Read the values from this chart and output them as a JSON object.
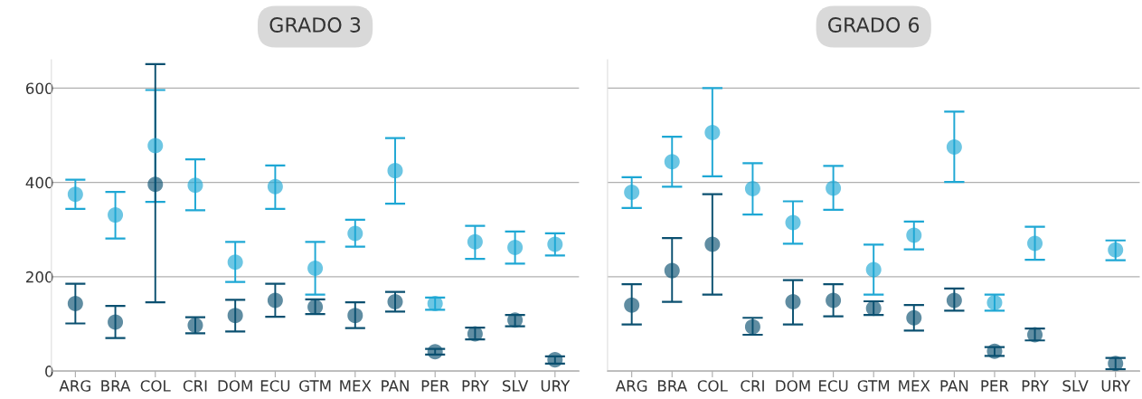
{
  "chart_data": [
    {
      "type": "scatter",
      "title": "GRADO 3",
      "categories": [
        "ARG",
        "BRA",
        "COL",
        "CRI",
        "DOM",
        "ECU",
        "GTM",
        "MEX",
        "PAN",
        "PER",
        "PRY",
        "SLV",
        "URY"
      ],
      "ylim": [
        0,
        660
      ],
      "yticks": [
        0,
        200,
        400,
        600
      ],
      "grid": "y",
      "marker": "circle",
      "series": [
        {
          "color": "#1ea7d4",
          "values": [
            375,
            331,
            478,
            394,
            231,
            391,
            218,
            292,
            425,
            143,
            274,
            262,
            269
          ],
          "errors": [
            [
              344,
              406
            ],
            [
              281,
              380
            ],
            [
              359,
              596
            ],
            [
              341,
              449
            ],
            [
              189,
              274
            ],
            [
              344,
              436
            ],
            [
              162,
              274
            ],
            [
              264,
              321
            ],
            [
              355,
              494
            ],
            [
              130,
              156
            ],
            [
              238,
              308
            ],
            [
              228,
              296
            ],
            [
              245,
              292
            ]
          ]
        },
        {
          "color": "#0b5070",
          "values": [
            143,
            104,
            396,
            97,
            118,
            150,
            136,
            118,
            147,
            41,
            79,
            108,
            24
          ],
          "errors": [
            [
              101,
              185
            ],
            [
              70,
              138
            ],
            [
              146,
              651
            ],
            [
              80,
              114
            ],
            [
              84,
              151
            ],
            [
              115,
              185
            ],
            [
              121,
              152
            ],
            [
              91,
              146
            ],
            [
              126,
              168
            ],
            [
              35,
              47
            ],
            [
              67,
              92
            ],
            [
              95,
              119
            ],
            [
              16,
              31
            ]
          ]
        }
      ]
    },
    {
      "type": "scatter",
      "title": "GRADO 6",
      "categories": [
        "ARG",
        "BRA",
        "COL",
        "CRI",
        "DOM",
        "ECU",
        "GTM",
        "MEX",
        "PAN",
        "PER",
        "PRY",
        "SLV",
        "URY"
      ],
      "ylim": [
        0,
        660
      ],
      "yticks": [
        0,
        200,
        400,
        600
      ],
      "grid": "y",
      "marker": "circle",
      "tick_labels": "x",
      "series": [
        {
          "color": "#1ea7d4",
          "values": [
            379,
            444,
            506,
            387,
            315,
            388,
            215,
            288,
            475,
            145,
            271,
            null,
            257
          ],
          "errors": [
            [
              346,
              411
            ],
            [
              391,
              497
            ],
            [
              413,
              600
            ],
            [
              332,
              441
            ],
            [
              270,
              360
            ],
            [
              342,
              435
            ],
            [
              162,
              268
            ],
            [
              258,
              317
            ],
            [
              401,
              550
            ],
            [
              128,
              162
            ],
            [
              236,
              306
            ],
            null,
            [
              235,
              277
            ]
          ]
        },
        {
          "color": "#0b5070",
          "values": [
            140,
            213,
            269,
            94,
            147,
            150,
            133,
            113,
            150,
            42,
            77,
            null,
            16
          ],
          "errors": [
            [
              99,
              184
            ],
            [
              147,
              282
            ],
            [
              162,
              375
            ],
            [
              77,
              113
            ],
            [
              99,
              193
            ],
            [
              116,
              184
            ],
            [
              119,
              148
            ],
            [
              86,
              140
            ],
            [
              128,
              175
            ],
            [
              32,
              51
            ],
            [
              65,
              90
            ],
            null,
            [
              4,
              28
            ]
          ]
        }
      ]
    }
  ]
}
